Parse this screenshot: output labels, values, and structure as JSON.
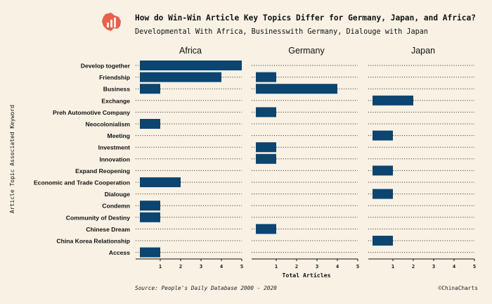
{
  "header": {
    "title": "How do Win-Win Article Key Topics Differ for Germany, Japan, and Africa?",
    "subtitle": "Developmental With Africa, Businesswith Germany, Dialouge with Japan",
    "logo_icon": "bar-chart-icon"
  },
  "footer": {
    "source": "Source: People's Daily Database   2000 - 2020",
    "credit": "©ChinaCharts"
  },
  "colors": {
    "background": "#f8f1e4",
    "bar": "#0b4570",
    "logo": "#e8604c",
    "text": "#111111"
  },
  "chart_data": {
    "type": "bar",
    "orientation": "horizontal",
    "xlabel": "Total Articles",
    "ylabel": "Article Topic Associated Keyword",
    "xlim": [
      0,
      5
    ],
    "xticks": [
      1,
      2,
      3,
      4,
      5
    ],
    "grid": "dotted horizontal",
    "categories": [
      "Develop together",
      "Friendship",
      "Business",
      "Exchange",
      "Preh Automotive Company",
      "Neocolonialism",
      "Meeting",
      "Investment",
      "Innovation",
      "Expand Reopening",
      "Economic and Trade Cooperation",
      "Dialouge",
      "Condemn",
      "Community of Destiny",
      "Chinese Dream",
      "China Korea Relationship",
      "Access"
    ],
    "series": [
      {
        "name": "Africa",
        "values": [
          5,
          4,
          1,
          0,
          0,
          1,
          0,
          0,
          0,
          0,
          2,
          0,
          1,
          1,
          0,
          0,
          1
        ]
      },
      {
        "name": "Germany",
        "values": [
          0,
          1,
          4,
          0,
          1,
          0,
          0,
          1,
          1,
          0,
          0,
          0,
          0,
          0,
          1,
          0,
          0
        ]
      },
      {
        "name": "Japan",
        "values": [
          0,
          0,
          0,
          2,
          0,
          0,
          1,
          0,
          0,
          1,
          0,
          1,
          0,
          0,
          0,
          1,
          0
        ]
      }
    ]
  }
}
